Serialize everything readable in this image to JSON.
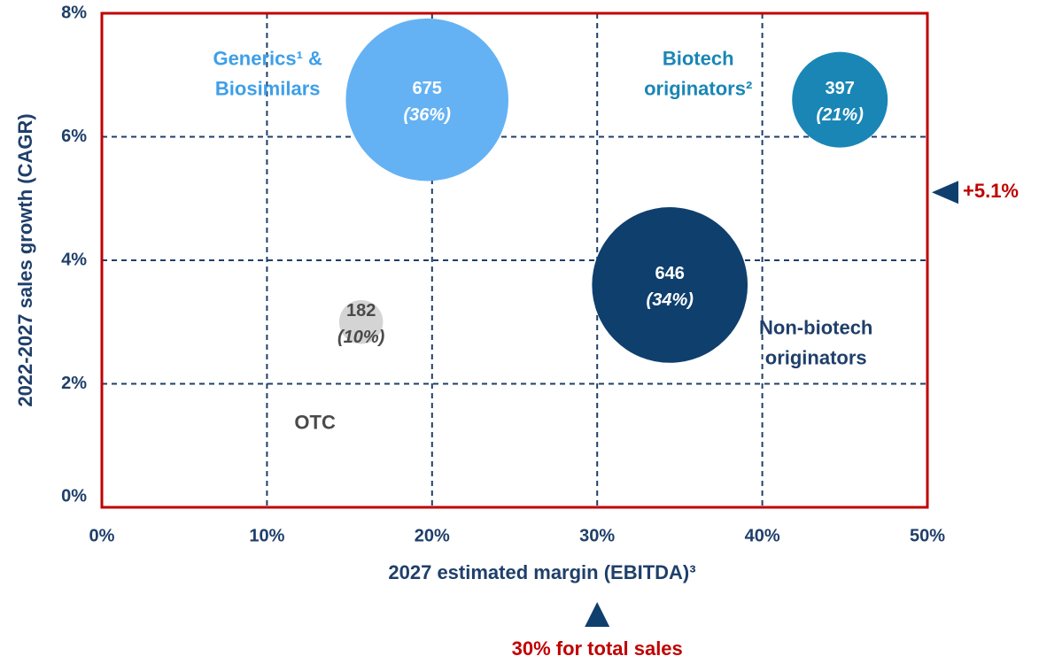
{
  "chart_data": {
    "type": "scatter",
    "xlabel": "2027 estimated margin (EBITDA)³",
    "ylabel": "2022-2027 sales growth (CAGR)",
    "xlim": [
      0,
      50
    ],
    "ylim": [
      0,
      8
    ],
    "xticks": [
      {
        "value": 0,
        "label": "0%"
      },
      {
        "value": 10,
        "label": "10%"
      },
      {
        "value": 20,
        "label": "20%"
      },
      {
        "value": 30,
        "label": "30%"
      },
      {
        "value": 40,
        "label": "40%"
      },
      {
        "value": 50,
        "label": "50%"
      }
    ],
    "yticks": [
      {
        "value": 0,
        "label": "0%"
      },
      {
        "value": 2,
        "label": "2%"
      },
      {
        "value": 4,
        "label": "4%"
      },
      {
        "value": 6,
        "label": "6%"
      },
      {
        "value": 8,
        "label": "8%"
      }
    ],
    "grid": true,
    "series": [
      {
        "name": [
          "Generics¹ &",
          "Biosimilars"
        ],
        "color": "#64b2f4",
        "label_color": "#3d9fe8",
        "x": 19.7,
        "y": 6.6,
        "size": 675,
        "share_label": "(36%)"
      },
      {
        "name": [
          "Biotech",
          "originators²"
        ],
        "color": "#1a86b6",
        "label_color": "#1a86b6",
        "x": 44.7,
        "y": 6.6,
        "size": 397,
        "share_label": "(21%)"
      },
      {
        "name": [
          "Non-biotech",
          "originators"
        ],
        "color": "#0f3f6d",
        "label_color": "#1f3f6a",
        "x": 34.4,
        "y": 3.6,
        "size": 646,
        "share_label": "(34%)"
      },
      {
        "name": [
          "OTC"
        ],
        "color": "#d4d4d4",
        "label_color": "#4a4a4a",
        "x": 15.7,
        "y": 3.0,
        "size": 182,
        "share_label": "(10%)"
      }
    ],
    "annotations": [
      {
        "text": "+5.1%",
        "axis": "y",
        "value": 5.1
      },
      {
        "text": "30% for total sales",
        "axis": "x",
        "value": 30
      }
    ]
  }
}
